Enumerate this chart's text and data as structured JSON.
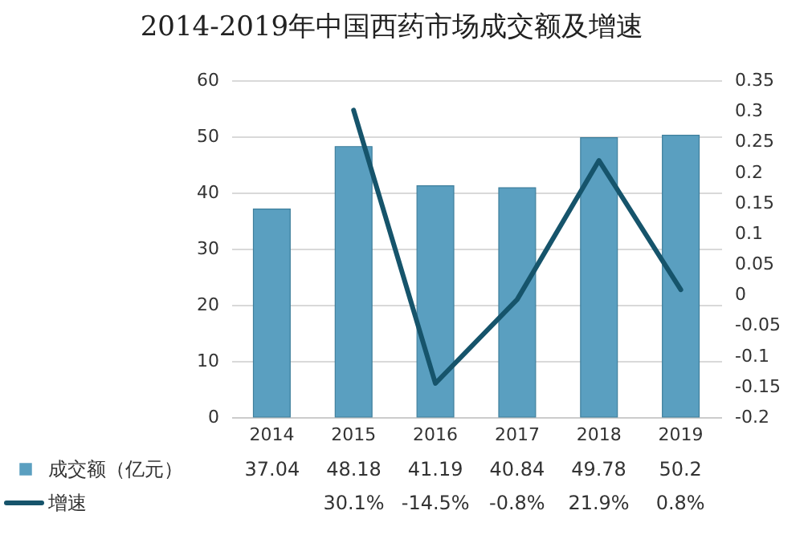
{
  "chart_data": {
    "type": "bar",
    "title": "2014-2019年中国西药市场成交额及增速",
    "categories": [
      "2014",
      "2015",
      "2016",
      "2017",
      "2018",
      "2019"
    ],
    "series": [
      {
        "name": "成交额（亿元）",
        "color": "#5a9fc0",
        "values": [
          37.04,
          48.18,
          41.19,
          40.84,
          49.78,
          50.2
        ],
        "value_labels": [
          "37.04",
          "48.18",
          "41.19",
          "40.84",
          "49.78",
          "50.2"
        ]
      },
      {
        "name": "增速",
        "type": "line",
        "axis": "y2",
        "color": "#16546b",
        "values": [
          null,
          0.301,
          -0.145,
          -0.008,
          0.219,
          0.008
        ],
        "value_labels": [
          null,
          "30.1%",
          "-14.5%",
          "-0.8%",
          "21.9%",
          "0.8%"
        ]
      }
    ],
    "ylim": [
      0,
      60
    ],
    "yticks": [
      0,
      10,
      20,
      30,
      40,
      50,
      60
    ],
    "y2lim": [
      -0.2,
      0.35
    ],
    "y2ticks": [
      -0.2,
      -0.15,
      -0.1,
      -0.05,
      0,
      0.05,
      0.1,
      0.15,
      0.2,
      0.25,
      0.3,
      0.35
    ],
    "grid": "y",
    "legend": "bottom left",
    "marker": "none",
    "line_style": "solid"
  }
}
